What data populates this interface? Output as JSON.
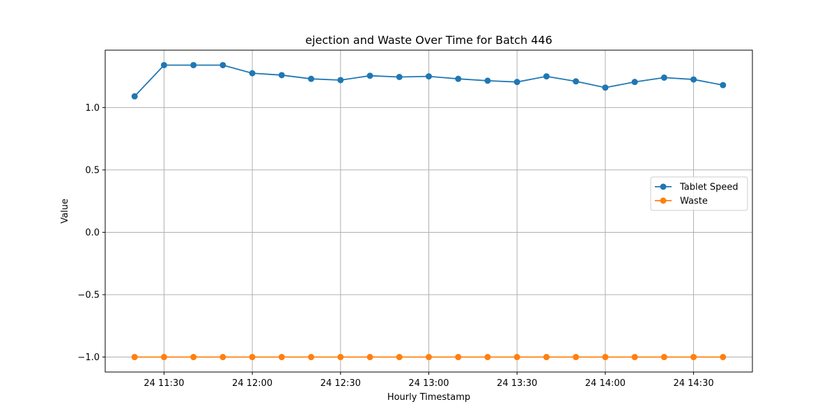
{
  "chart_data": {
    "type": "line",
    "title": "ejection and Waste Over Time for Batch 446",
    "xlabel": "Hourly Timestamp",
    "ylabel": "Value",
    "x": [
      "11:20",
      "11:30",
      "11:40",
      "11:50",
      "12:00",
      "12:10",
      "12:20",
      "12:30",
      "12:40",
      "12:50",
      "13:00",
      "13:10",
      "13:20",
      "13:30",
      "13:40",
      "13:50",
      "14:00",
      "14:10",
      "14:20",
      "14:30",
      "14:40"
    ],
    "xticks": [
      {
        "value": "11:30",
        "label": "24 11:30"
      },
      {
        "value": "12:00",
        "label": "24 12:00"
      },
      {
        "value": "12:30",
        "label": "24 12:30"
      },
      {
        "value": "13:00",
        "label": "24 13:00"
      },
      {
        "value": "13:30",
        "label": "24 13:30"
      },
      {
        "value": "14:00",
        "label": "24 14:00"
      },
      {
        "value": "14:30",
        "label": "24 14:30"
      }
    ],
    "xlim": [
      "11:10",
      "14:50"
    ],
    "yticks": [
      {
        "value": 1.0,
        "label": "1.0"
      },
      {
        "value": 0.5,
        "label": "0.5"
      },
      {
        "value": 0.0,
        "label": "0.0"
      },
      {
        "value": -0.5,
        "label": "−0.5"
      },
      {
        "value": -1.0,
        "label": "−1.0"
      }
    ],
    "ylim": [
      -1.12,
      1.46
    ],
    "grid": true,
    "legend_position": "center-right",
    "series": [
      {
        "name": "Tablet Speed",
        "color": "#1f77b4",
        "values": [
          1.09,
          1.34,
          1.34,
          1.34,
          1.275,
          1.26,
          1.23,
          1.22,
          1.255,
          1.245,
          1.25,
          1.23,
          1.215,
          1.205,
          1.25,
          1.21,
          1.16,
          1.205,
          1.24,
          1.225,
          1.18
        ]
      },
      {
        "name": "Waste",
        "color": "#ff7f0e",
        "values": [
          -1.0,
          -1.0,
          -1.0,
          -1.0,
          -1.0,
          -1.0,
          -1.0,
          -1.0,
          -1.0,
          -1.0,
          -1.0,
          -1.0,
          -1.0,
          -1.0,
          -1.0,
          -1.0,
          -1.0,
          -1.0,
          -1.0,
          -1.0,
          -1.0
        ]
      }
    ]
  }
}
